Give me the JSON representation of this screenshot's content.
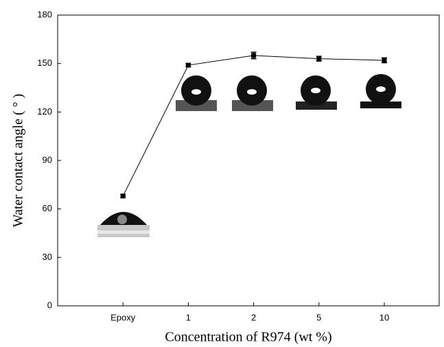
{
  "chart_data": {
    "type": "line",
    "x_label": "Concentration of R974 (wt %)",
    "y_label": "Water contact angle ( ° )",
    "categories": [
      "Epoxy",
      "1",
      "2",
      "5",
      "10"
    ],
    "series": [
      {
        "color": "#000000",
        "values": [
          68,
          149,
          155,
          153,
          152
        ],
        "errors": [
          1,
          1,
          2,
          1.5,
          1.5
        ]
      }
    ],
    "ylim": [
      0,
      180
    ],
    "yticks": [
      0,
      30,
      60,
      90,
      120,
      150,
      180
    ]
  }
}
